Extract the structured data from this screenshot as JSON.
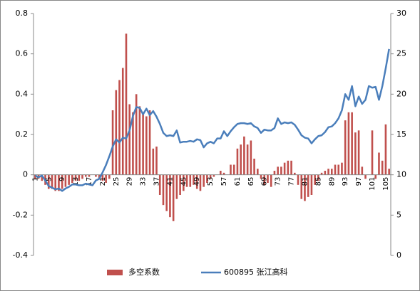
{
  "chart_data": {
    "type": "bar",
    "categories": [
      "1",
      null,
      null,
      null,
      "5",
      null,
      null,
      null,
      "9",
      null,
      null,
      null,
      "13",
      null,
      null,
      null,
      "17",
      null,
      null,
      null,
      "21",
      null,
      null,
      null,
      "25",
      null,
      null,
      null,
      "29",
      null,
      null,
      null,
      "33",
      null,
      null,
      null,
      "37",
      null,
      null,
      null,
      "41",
      null,
      null,
      null,
      "45",
      null,
      null,
      null,
      "49",
      null,
      null,
      null,
      "53",
      null,
      null,
      null,
      "57",
      null,
      null,
      null,
      "61",
      null,
      null,
      null,
      "65",
      null,
      null,
      null,
      "69",
      null,
      null,
      null,
      "73",
      null,
      null,
      null,
      "77",
      null,
      null,
      null,
      "81",
      null,
      null,
      null,
      "85",
      null,
      null,
      null,
      "89",
      null,
      null,
      null,
      "93",
      null,
      null,
      null,
      "97",
      null,
      null,
      null,
      "101",
      null,
      null,
      null,
      "105",
      null
    ],
    "series": [
      {
        "name": "多空系数",
        "type": "bar",
        "color": "#c0504d",
        "values": [
          -0.02,
          -0.02,
          -0.03,
          -0.05,
          -0.07,
          -0.07,
          -0.08,
          -0.08,
          -0.07,
          -0.06,
          -0.05,
          -0.04,
          -0.03,
          -0.03,
          -0.02,
          -0.01,
          -0.01,
          0,
          -0.01,
          -0.02,
          -0.03,
          -0.04,
          -0.02,
          0.32,
          0.42,
          0.47,
          0.53,
          0.7,
          0.35,
          0.31,
          0.4,
          0.34,
          0.3,
          0.29,
          0.32,
          0.13,
          0.14,
          -0.1,
          -0.15,
          -0.18,
          -0.21,
          -0.23,
          -0.12,
          -0.1,
          -0.08,
          -0.06,
          -0.06,
          -0.05,
          -0.07,
          -0.08,
          -0.06,
          -0.04,
          -0.02,
          -0.01,
          0,
          0.02,
          0.01,
          0,
          0.05,
          0.05,
          0.13,
          0.15,
          0.19,
          0.15,
          0.17,
          0.08,
          0.03,
          -0.02,
          -0.05,
          -0.04,
          -0.06,
          0.02,
          0.04,
          0.04,
          0.06,
          0.07,
          0.07,
          0.01,
          -0.05,
          -0.12,
          -0.13,
          -0.11,
          -0.1,
          -0.05,
          -0.03,
          0.01,
          0.02,
          0.03,
          0.03,
          0.05,
          0.05,
          0.06,
          0.27,
          0.31,
          0.31,
          0.21,
          0.22,
          0.04,
          -0.02,
          0,
          0.22,
          -0.02,
          0.11,
          0.07,
          0.25,
          0.03
        ]
      },
      {
        "name": "600895 张江高科",
        "type": "line",
        "axis": "y2",
        "color": "#4a7ebb",
        "values": [
          9.9,
          9.7,
          9.9,
          9.3,
          8.6,
          8.4,
          8.2,
          8.3,
          8.0,
          8.3,
          8.5,
          8.8,
          8.8,
          8.7,
          8.7,
          8.9,
          8.8,
          8.7,
          9.3,
          9.5,
          10.3,
          11.2,
          12.3,
          13.5,
          14.4,
          14.0,
          14.6,
          14.5,
          15.5,
          17.3,
          18.4,
          18.3,
          17.5,
          18.2,
          17.4,
          17.9,
          17.2,
          16.3,
          15.2,
          14.8,
          14.9,
          14.8,
          15.5,
          14.0,
          14.1,
          14.1,
          14.2,
          14.1,
          14.4,
          14.3,
          13.4,
          13.9,
          14.1,
          13.9,
          14.5,
          14.5,
          15.4,
          14.8,
          15.4,
          15.9,
          16.3,
          16.4,
          16.4,
          16.3,
          16.4,
          16.0,
          15.8,
          15.2,
          15.6,
          15.5,
          15.5,
          15.8,
          17.0,
          16.3,
          16.5,
          16.4,
          16.5,
          16.2,
          15.6,
          14.9,
          14.6,
          14.5,
          13.9,
          14.4,
          14.8,
          14.9,
          15.3,
          15.9,
          16.0,
          16.4,
          17.0,
          18.0,
          20.0,
          19.3,
          21.0,
          18.5,
          19.7,
          18.8,
          19.3,
          21.0,
          20.8,
          20.9,
          19.3,
          21.0,
          23.2,
          25.6
        ]
      }
    ],
    "ylim": [
      -0.4,
      0.8
    ],
    "yticks": [
      -0.4,
      -0.2,
      0,
      0.2,
      0.4,
      0.6,
      0.8
    ],
    "y2lim": [
      0,
      30
    ],
    "y2ticks": [
      0,
      5,
      10,
      15,
      20,
      25,
      30
    ],
    "legend": "bottom"
  }
}
